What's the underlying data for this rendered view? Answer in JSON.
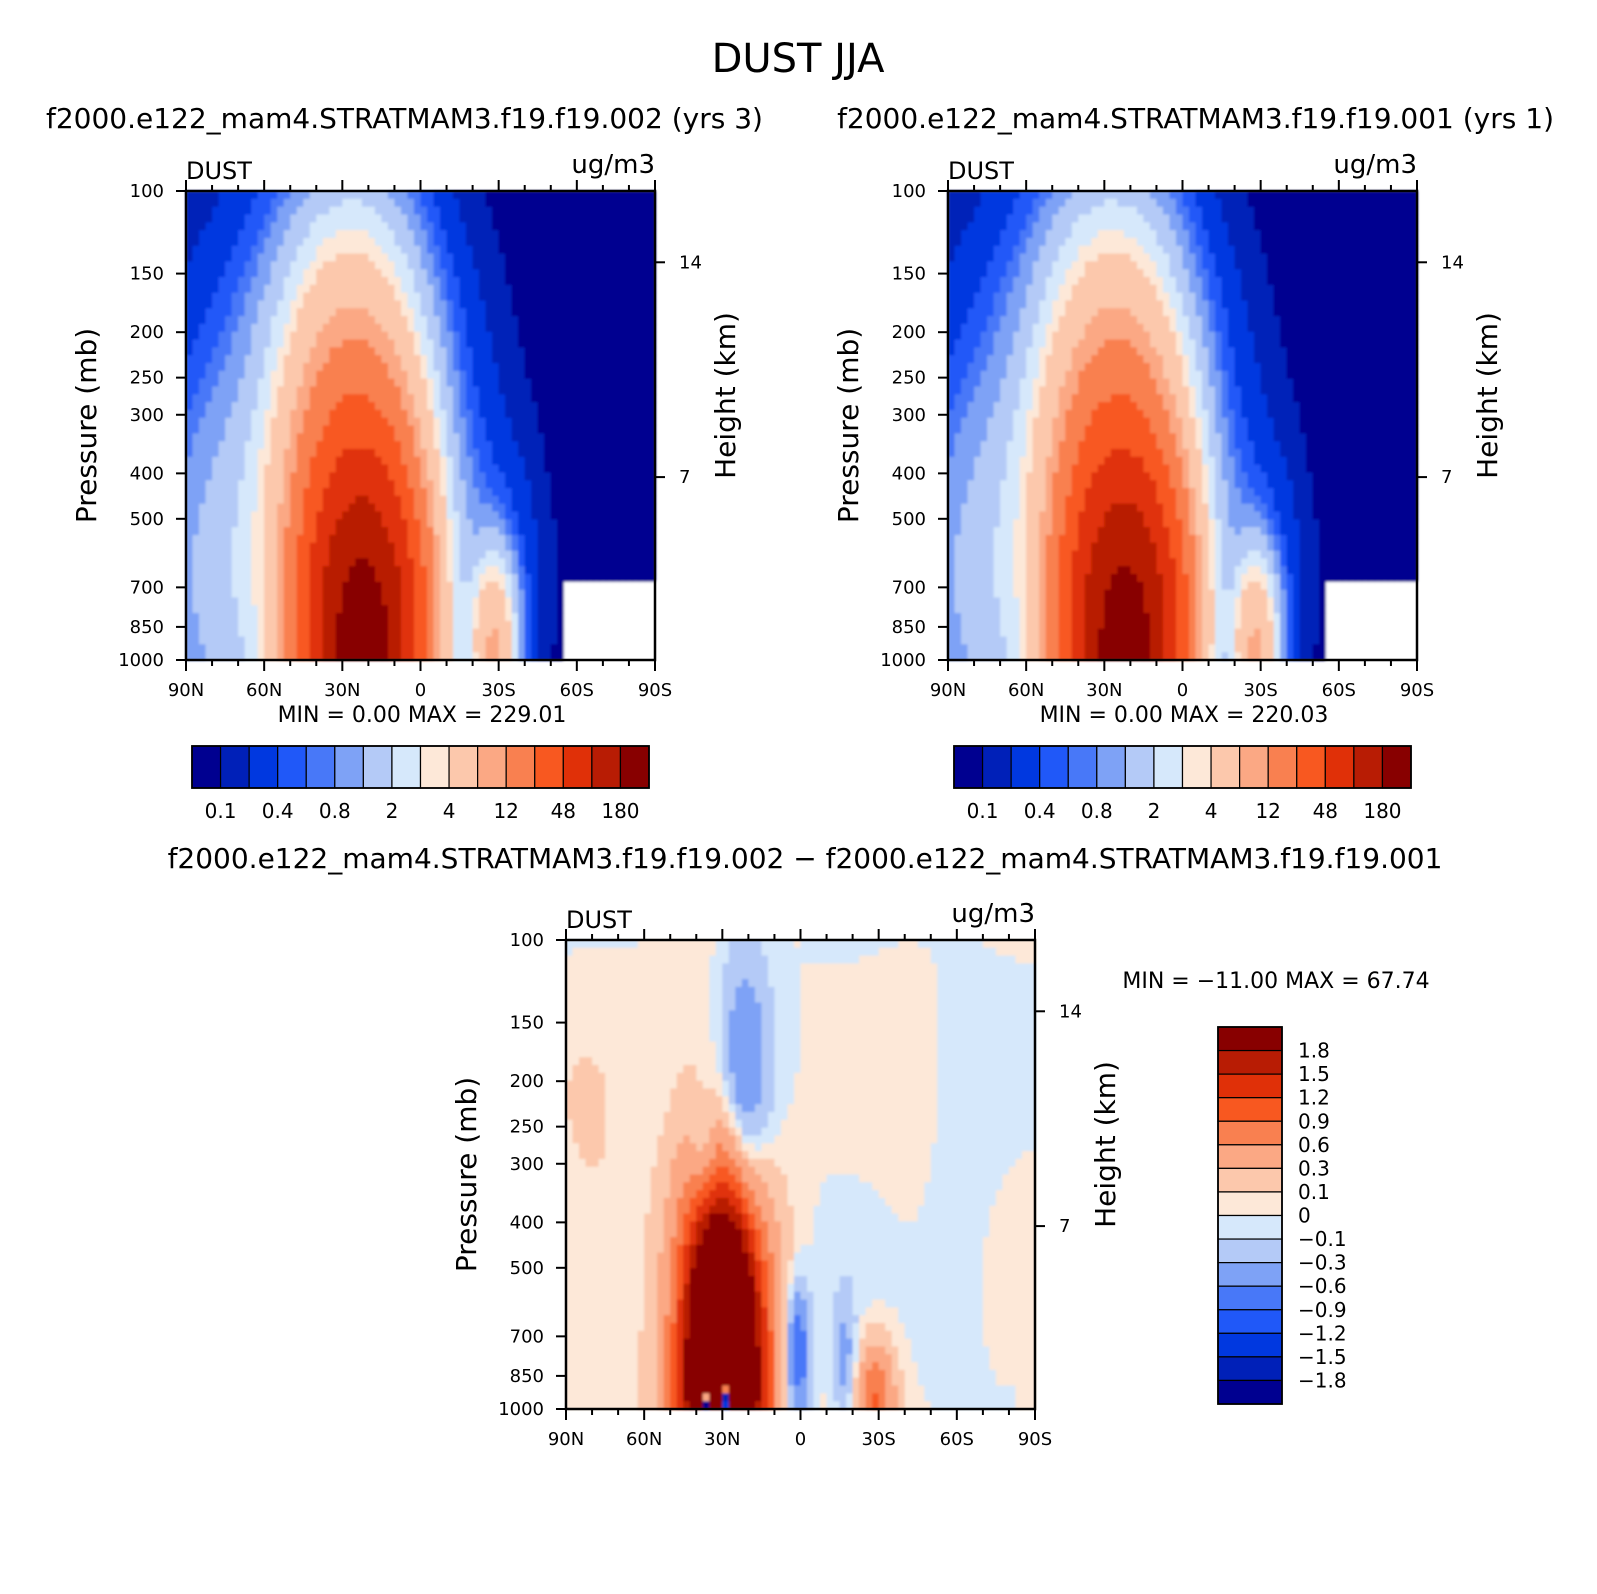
{
  "figure": {
    "title": "DUST JJA"
  },
  "chart_data": [
    {
      "type": "heatmap",
      "panel": "top-left",
      "case_title": "f2000.e122_mam4.STRATMAM3.f19.f19.002 (yrs 3)",
      "variable_label": "DUST",
      "units_label": "ug/m3",
      "ylabel": "Pressure (mb)",
      "ylabel_right": "Height (km)",
      "x_ticks": [
        "90N",
        "60N",
        "30N",
        "0",
        "30S",
        "60S",
        "90S"
      ],
      "x_lim": [
        90,
        -90
      ],
      "y_ticks": [
        100,
        150,
        200,
        250,
        300,
        400,
        500,
        700,
        850,
        1000
      ],
      "y_lim": [
        100,
        1000
      ],
      "y_scale": "log",
      "height_ticks": [
        14,
        7
      ],
      "min_max_label": "MIN = 0.00 MAX = 229.01",
      "min": 0.0,
      "max": 229.01,
      "colorbar": {
        "orientation": "horizontal",
        "tick_labels": [
          "0.1",
          "0.4",
          "0.8",
          "2",
          "4",
          "12",
          "48",
          "180"
        ],
        "colors": [
          "#000090",
          "#0020b8",
          "#0038e0",
          "#2058f8",
          "#4878f8",
          "#7ea2f6",
          "#b4caf7",
          "#d6e8fb",
          "#fde8d8",
          "#fcc8ac",
          "#fba884",
          "#f98050",
          "#f85820",
          "#e03008",
          "#b81c04",
          "#880000"
        ]
      },
      "features": {
        "primary_peak": {
          "lat": 22,
          "pressure": 950,
          "max": 229.01
        },
        "secondary_peak": {
          "lat": -27,
          "pressure": 930
        }
      }
    },
    {
      "type": "heatmap",
      "panel": "top-right",
      "case_title": "f2000.e122_mam4.STRATMAM3.f19.f19.001 (yrs 1)",
      "variable_label": "DUST",
      "units_label": "ug/m3",
      "ylabel": "Pressure (mb)",
      "ylabel_right": "Height (km)",
      "x_ticks": [
        "90N",
        "60N",
        "30N",
        "0",
        "30S",
        "60S",
        "90S"
      ],
      "x_lim": [
        90,
        -90
      ],
      "y_ticks": [
        100,
        150,
        200,
        250,
        300,
        400,
        500,
        700,
        850,
        1000
      ],
      "y_lim": [
        100,
        1000
      ],
      "y_scale": "log",
      "height_ticks": [
        14,
        7
      ],
      "min_max_label": "MIN = 0.00 MAX = 220.03",
      "min": 0.0,
      "max": 220.03,
      "colorbar": {
        "orientation": "horizontal",
        "tick_labels": [
          "0.1",
          "0.4",
          "0.8",
          "2",
          "4",
          "12",
          "48",
          "180"
        ],
        "colors": [
          "#000090",
          "#0020b8",
          "#0038e0",
          "#2058f8",
          "#4878f8",
          "#7ea2f6",
          "#b4caf7",
          "#d6e8fb",
          "#fde8d8",
          "#fcc8ac",
          "#fba884",
          "#f98050",
          "#f85820",
          "#e03008",
          "#b81c04",
          "#880000"
        ]
      },
      "features": {
        "primary_peak": {
          "lat": 22,
          "pressure": 960,
          "max": 220.03
        },
        "secondary_peak": {
          "lat": -28,
          "pressure": 930
        }
      }
    },
    {
      "type": "heatmap",
      "panel": "bottom-difference",
      "case_title": "f2000.e122_mam4.STRATMAM3.f19.f19.002 − f2000.e122_mam4.STRATMAM3.f19.f19.001",
      "variable_label": "DUST",
      "units_label": "ug/m3",
      "ylabel": "Pressure (mb)",
      "ylabel_right": "Height (km)",
      "x_ticks": [
        "90N",
        "60N",
        "30N",
        "0",
        "30S",
        "60S",
        "90S"
      ],
      "x_lim": [
        90,
        -90
      ],
      "y_ticks": [
        100,
        150,
        200,
        250,
        300,
        400,
        500,
        700,
        850,
        1000
      ],
      "y_lim": [
        100,
        1000
      ],
      "y_scale": "log",
      "height_ticks": [
        14,
        7
      ],
      "min_max_label": "MIN = −11.00 MAX = 67.74",
      "min": -11.0,
      "max": 67.74,
      "colorbar": {
        "orientation": "vertical",
        "tick_labels": [
          "1.8",
          "1.5",
          "1.2",
          "0.9",
          "0.6",
          "0.3",
          "0.1",
          "0",
          "−0.1",
          "−0.3",
          "−0.6",
          "−0.9",
          "−1.2",
          "−1.5",
          "−1.8"
        ],
        "colors": [
          "#880000",
          "#b81c04",
          "#e03008",
          "#f85820",
          "#f98050",
          "#fba884",
          "#fcc8ac",
          "#fde8d8",
          "#d6e8fb",
          "#b4caf7",
          "#7ea2f6",
          "#4878f8",
          "#2058f8",
          "#0038e0",
          "#0020b8",
          "#000090"
        ]
      },
      "features": {
        "positive_block": {
          "lat_range": [
            50,
            12
          ],
          "pressure_range": [
            450,
            1000
          ]
        },
        "negative_column": {
          "lat_range": [
            28,
            15
          ],
          "pressure_range": [
            140,
            350
          ]
        },
        "positive_spot_south": {
          "lat": -30,
          "pressure": 950
        }
      }
    }
  ]
}
